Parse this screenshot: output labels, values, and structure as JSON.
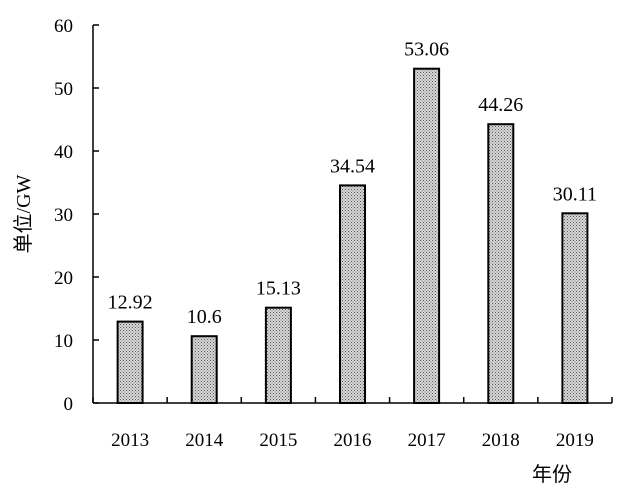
{
  "chart_data": {
    "type": "bar",
    "categories": [
      "2013",
      "2014",
      "2015",
      "2016",
      "2017",
      "2018",
      "2019"
    ],
    "values": [
      12.92,
      10.6,
      15.13,
      34.54,
      53.06,
      44.26,
      30.11
    ],
    "data_labels": [
      "12.92",
      "10.6",
      "15.13",
      "34.54",
      "53.06",
      "44.26",
      "30.11"
    ],
    "title": "",
    "xlabel": "年份",
    "ylabel": "单位/GW",
    "ylim": [
      0,
      60
    ],
    "yticks": [
      0,
      10,
      20,
      30,
      40,
      50,
      60
    ],
    "grid": false,
    "legend": "none",
    "bar_pattern": "dotted gray fill"
  },
  "colors": {
    "bar_fill": "#c8c8c8",
    "bar_dot": "#555555",
    "bar_stroke": "#000000",
    "axis": "#000000",
    "text": "#000000"
  }
}
